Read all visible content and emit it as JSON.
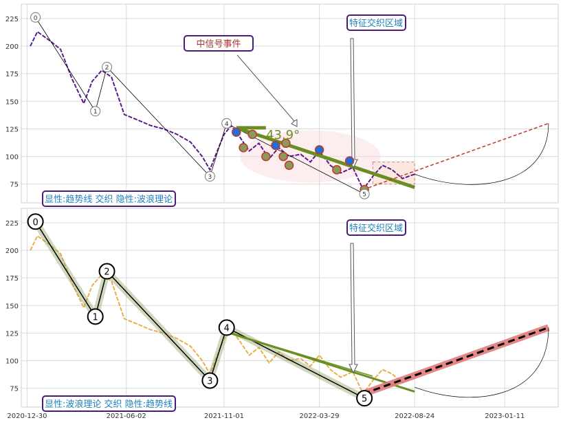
{
  "chart_data": [
    {
      "type": "line",
      "panel": "top",
      "ylim": [
        58,
        238
      ],
      "y_ticks": [
        75,
        100,
        125,
        150,
        175,
        200,
        225
      ],
      "xlim": [
        "2020-12-21",
        "2023-04-04"
      ],
      "grid": true,
      "colors": {
        "price": "#5a1a8a",
        "trend": "#6b8e23",
        "zigzag": "#000000",
        "projection": "#e07b7b",
        "zone": "#f5d5d5",
        "badge_border": "#4b1a7a",
        "badge_text": "#1f7fbf",
        "event_text": "#b03030"
      },
      "series": [
        {
          "values_x": [
            "2021-01-04",
            "2021-01-15",
            "2021-02-03",
            "2021-02-20",
            "2021-03-10",
            "2021-03-28",
            "2021-04-10",
            "2021-04-25",
            "2021-05-10",
            "2021-05-30",
            "2021-06-20",
            "2021-07-10",
            "2021-07-30",
            "2021-08-20",
            "2021-09-10",
            "2021-09-28",
            "2021-10-10",
            "2021-10-20",
            "2021-11-01",
            "2021-11-12",
            "2021-11-25",
            "2021-12-10",
            "2021-12-25",
            "2022-01-10",
            "2022-01-25",
            "2022-02-10",
            "2022-02-28",
            "2022-03-15",
            "2022-03-29",
            "2022-04-15",
            "2022-05-01",
            "2022-05-20",
            "2022-06-05",
            "2022-06-20",
            "2022-07-05",
            "2022-07-20",
            "2022-08-05",
            "2022-08-24"
          ],
          "values_y": [
            200,
            213,
            205,
            197,
            170,
            148,
            168,
            178,
            172,
            138,
            133,
            128,
            125,
            120,
            113,
            100,
            88,
            103,
            120,
            128,
            118,
            105,
            112,
            98,
            108,
            100,
            102,
            95,
            105,
            92,
            85,
            90,
            70,
            82,
            92,
            88,
            80,
            84
          ]
        }
      ],
      "wave_labels": [
        {
          "label": "0",
          "x": "2021-01-12",
          "y": 226
        },
        {
          "label": "1",
          "x": "2021-04-15",
          "y": 141
        },
        {
          "label": "2",
          "x": "2021-05-03",
          "y": 181
        },
        {
          "label": "3",
          "x": "2021-10-10",
          "y": 82
        },
        {
          "label": "4",
          "x": "2021-11-05",
          "y": 130
        },
        {
          "label": "5",
          "x": "2022-06-07",
          "y": 66
        }
      ],
      "projection": {
        "from": [
          "2022-06-05",
          70
        ],
        "to": [
          "2023-03-20",
          130
        ]
      },
      "trend_angle": "43.9°",
      "annotations": {
        "event": "中信号事件",
        "zone": "特征交织区域",
        "mode": "显性:趋势线 交织 隐性:波浪理论"
      }
    },
    {
      "type": "line",
      "panel": "bottom",
      "ylim": [
        58,
        238
      ],
      "y_ticks": [
        75,
        100,
        125,
        150,
        175,
        200,
        225
      ],
      "x_ticks": [
        "2020-12-30",
        "2021-06-02",
        "2021-11-01",
        "2022-03-29",
        "2022-08-24",
        "2023-01-11"
      ],
      "xlim": [
        "2020-12-21",
        "2023-04-04"
      ],
      "grid": true,
      "colors": {
        "price": "#e8b04a",
        "trend": "#6b8e23",
        "zigzag": "#000000",
        "projection": "#e07b7b",
        "badge_border": "#4b1a7a",
        "badge_text": "#1f7fbf"
      },
      "wave_labels": [
        {
          "label": "0",
          "x": "2021-01-12",
          "y": 226
        },
        {
          "label": "1",
          "x": "2021-04-15",
          "y": 140
        },
        {
          "label": "2",
          "x": "2021-05-03",
          "y": 181
        },
        {
          "label": "3",
          "x": "2021-10-10",
          "y": 82
        },
        {
          "label": "4",
          "x": "2021-11-05",
          "y": 130
        },
        {
          "label": "5",
          "x": "2022-06-07",
          "y": 66
        }
      ],
      "annotations": {
        "zone": "特征交织区域",
        "mode": "显性:波浪理论 交织 隐性:趋势线"
      }
    }
  ]
}
